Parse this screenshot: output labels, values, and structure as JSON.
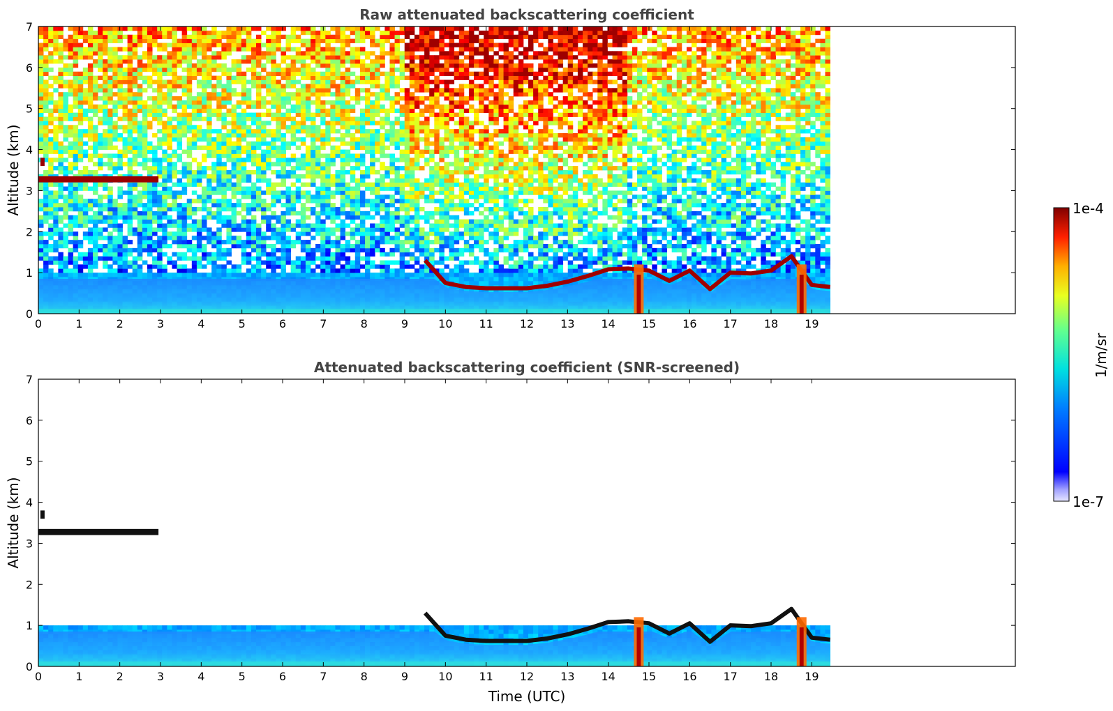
{
  "chart_data": [
    {
      "type": "heatmap",
      "title": "Raw attenuated backscattering coefficient",
      "xlabel": "",
      "ylabel": "Altitude (km)",
      "xlim": [
        0,
        24
      ],
      "ylim": [
        0,
        7
      ],
      "xticks": [
        "0",
        "1",
        "2",
        "3",
        "4",
        "5",
        "6",
        "7",
        "8",
        "9",
        "10",
        "11",
        "12",
        "13",
        "14",
        "15",
        "16",
        "17",
        "18",
        "19"
      ],
      "yticks": [
        "0",
        "1",
        "2",
        "3",
        "4",
        "5",
        "6",
        "7"
      ],
      "data_end_time": 19.45,
      "color_scale": "log",
      "features": {
        "cloud_layer_upper": {
          "x": [
            0.0,
            2.95
          ],
          "altitude": [
            3.2,
            3.3
          ]
        },
        "boundary_layer_top": {
          "x": [
            9.5,
            10.0,
            10.5,
            11.0,
            11.5,
            12.0,
            12.5,
            13.0,
            13.5,
            14.0,
            14.5,
            15.0,
            15.5,
            16.0,
            16.5,
            17.0,
            17.5,
            18.0,
            18.5,
            19.0,
            19.45
          ],
          "altitude": [
            1.3,
            0.75,
            0.65,
            0.62,
            0.62,
            0.62,
            0.68,
            0.78,
            0.92,
            1.08,
            1.1,
            1.05,
            0.8,
            1.05,
            0.6,
            1.0,
            0.98,
            1.05,
            1.4,
            0.7,
            0.65
          ]
        },
        "precipitation_shafts": [
          14.75,
          18.75
        ]
      }
    },
    {
      "type": "heatmap",
      "title": "Attenuated backscattering coefficient (SNR-screened)",
      "xlabel": "Time (UTC)",
      "ylabel": "Altitude (km)",
      "xlim": [
        0,
        24
      ],
      "ylim": [
        0,
        7
      ],
      "xticks": [
        "0",
        "1",
        "2",
        "3",
        "4",
        "5",
        "6",
        "7",
        "8",
        "9",
        "10",
        "11",
        "12",
        "13",
        "14",
        "15",
        "16",
        "17",
        "18",
        "19"
      ],
      "yticks": [
        "0",
        "1",
        "2",
        "3",
        "4",
        "5",
        "6",
        "7"
      ],
      "data_end_time": 19.45,
      "color_scale": "log"
    }
  ],
  "colorbar": {
    "max_label": "1e-4",
    "min_label": "1e-7",
    "unit_label": "1/m/sr",
    "colormap": "jet"
  }
}
